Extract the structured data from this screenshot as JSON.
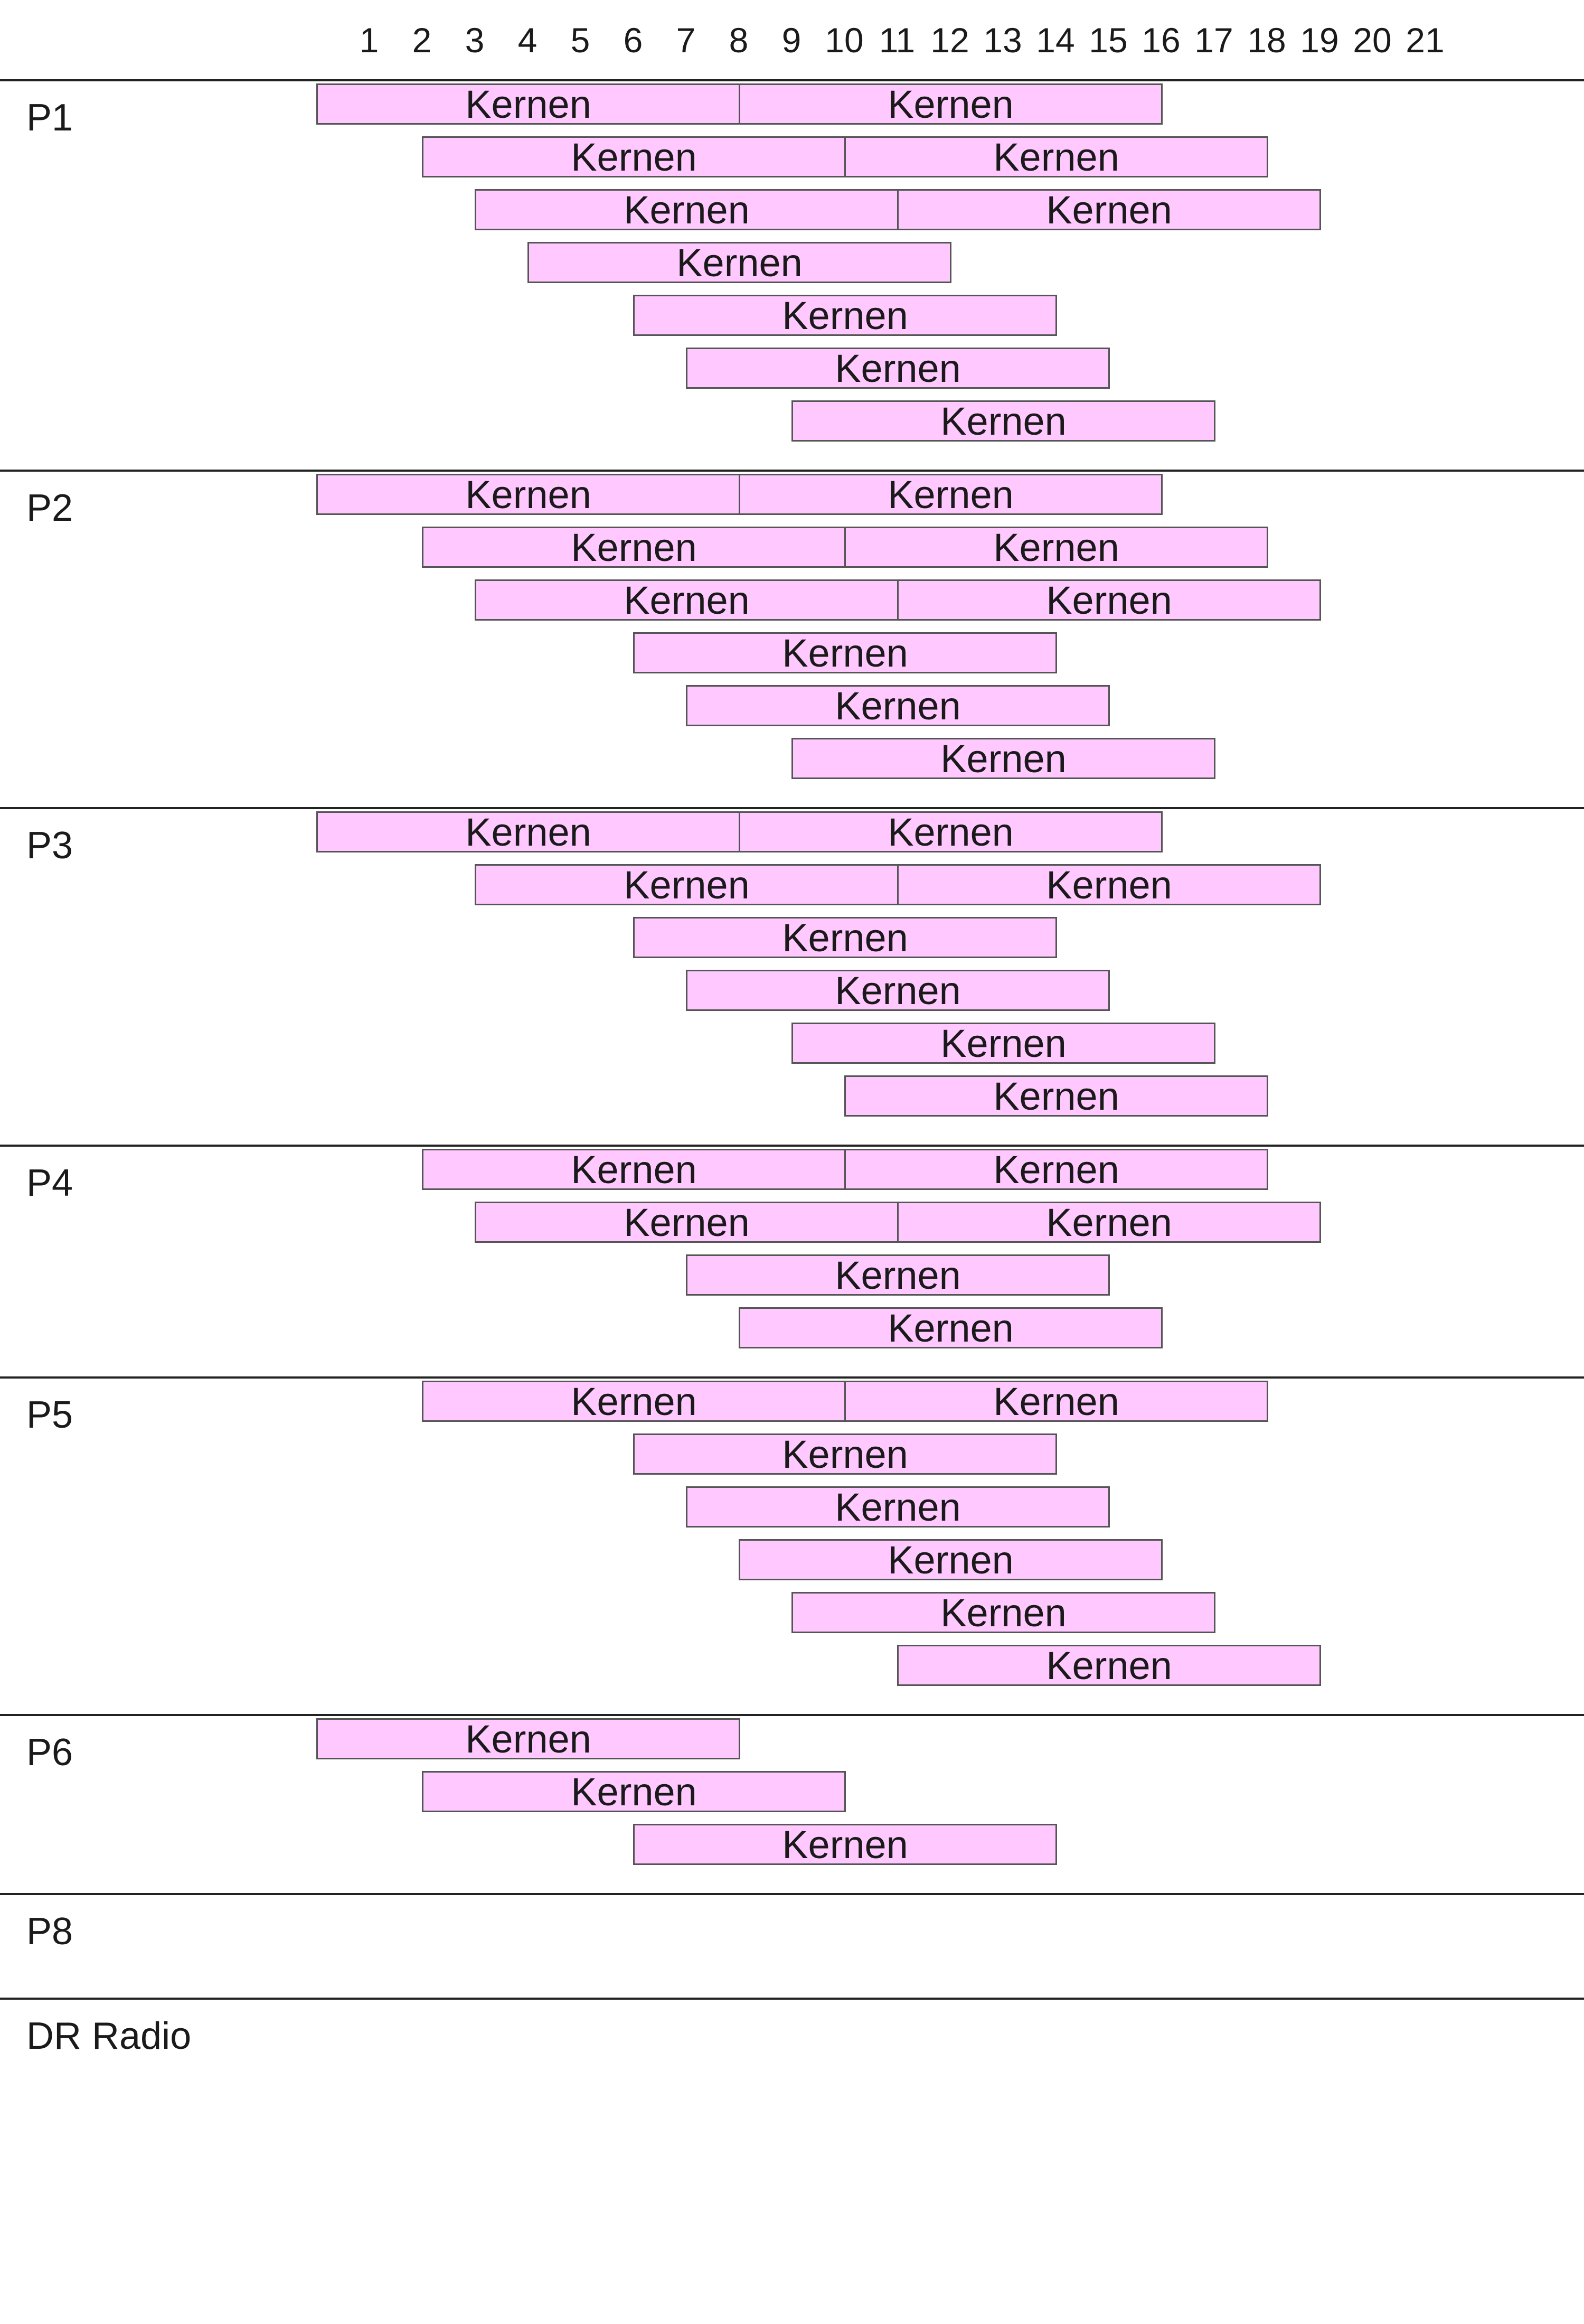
{
  "chart_data": {
    "type": "bar",
    "orientation": "horizontal-timeline",
    "x_ticks": [
      "1",
      "2",
      "3",
      "4",
      "5",
      "6",
      "7",
      "8",
      "9",
      "10",
      "11",
      "12",
      "13",
      "14",
      "15",
      "16",
      "17",
      "18",
      "19",
      "20",
      "21"
    ],
    "xlim": [
      0,
      21
    ],
    "bar_color": "#ffc8ff",
    "bar_border_color": "#555555",
    "channels": [
      {
        "name": "P1",
        "rows": [
          [
            {
              "label": "Kernen",
              "start": 0,
              "end": 8
            },
            {
              "label": "Kernen",
              "start": 8,
              "end": 16
            }
          ],
          [
            {
              "label": "Kernen",
              "start": 2,
              "end": 10
            },
            {
              "label": "Kernen",
              "start": 10,
              "end": 18
            }
          ],
          [
            {
              "label": "Kernen",
              "start": 3,
              "end": 11
            },
            {
              "label": "Kernen",
              "start": 11,
              "end": 19
            }
          ],
          [
            {
              "label": "Kernen",
              "start": 4,
              "end": 12
            }
          ],
          [
            {
              "label": "Kernen",
              "start": 6,
              "end": 14
            }
          ],
          [
            {
              "label": "Kernen",
              "start": 7,
              "end": 15
            }
          ],
          [
            {
              "label": "Kernen",
              "start": 9,
              "end": 17
            }
          ]
        ]
      },
      {
        "name": "P2",
        "rows": [
          [
            {
              "label": "Kernen",
              "start": 0,
              "end": 8
            },
            {
              "label": "Kernen",
              "start": 8,
              "end": 16
            }
          ],
          [
            {
              "label": "Kernen",
              "start": 2,
              "end": 10
            },
            {
              "label": "Kernen",
              "start": 10,
              "end": 18
            }
          ],
          [
            {
              "label": "Kernen",
              "start": 3,
              "end": 11
            },
            {
              "label": "Kernen",
              "start": 11,
              "end": 19
            }
          ],
          [
            {
              "label": "Kernen",
              "start": 6,
              "end": 14
            }
          ],
          [
            {
              "label": "Kernen",
              "start": 7,
              "end": 15
            }
          ],
          [
            {
              "label": "Kernen",
              "start": 9,
              "end": 17
            }
          ]
        ]
      },
      {
        "name": "P3",
        "rows": [
          [
            {
              "label": "Kernen",
              "start": 0,
              "end": 8
            },
            {
              "label": "Kernen",
              "start": 8,
              "end": 16
            }
          ],
          [
            {
              "label": "Kernen",
              "start": 3,
              "end": 11
            },
            {
              "label": "Kernen",
              "start": 11,
              "end": 19
            }
          ],
          [
            {
              "label": "Kernen",
              "start": 6,
              "end": 14
            }
          ],
          [
            {
              "label": "Kernen",
              "start": 7,
              "end": 15
            }
          ],
          [
            {
              "label": "Kernen",
              "start": 9,
              "end": 17
            }
          ],
          [
            {
              "label": "Kernen",
              "start": 10,
              "end": 18
            }
          ]
        ]
      },
      {
        "name": "P4",
        "rows": [
          [
            {
              "label": "Kernen",
              "start": 2,
              "end": 10
            },
            {
              "label": "Kernen",
              "start": 10,
              "end": 18
            }
          ],
          [
            {
              "label": "Kernen",
              "start": 3,
              "end": 11
            },
            {
              "label": "Kernen",
              "start": 11,
              "end": 19
            }
          ],
          [
            {
              "label": "Kernen",
              "start": 7,
              "end": 15
            }
          ],
          [
            {
              "label": "Kernen",
              "start": 8,
              "end": 16
            }
          ]
        ]
      },
      {
        "name": "P5",
        "rows": [
          [
            {
              "label": "Kernen",
              "start": 2,
              "end": 10
            },
            {
              "label": "Kernen",
              "start": 10,
              "end": 18
            }
          ],
          [
            {
              "label": "Kernen",
              "start": 6,
              "end": 14
            }
          ],
          [
            {
              "label": "Kernen",
              "start": 7,
              "end": 15
            }
          ],
          [
            {
              "label": "Kernen",
              "start": 8,
              "end": 16
            }
          ],
          [
            {
              "label": "Kernen",
              "start": 9,
              "end": 17
            }
          ],
          [
            {
              "label": "Kernen",
              "start": 11,
              "end": 19
            }
          ]
        ]
      },
      {
        "name": "P6",
        "rows": [
          [
            {
              "label": "Kernen",
              "start": 0,
              "end": 8
            }
          ],
          [
            {
              "label": "Kernen",
              "start": 2,
              "end": 10
            }
          ],
          [
            {
              "label": "Kernen",
              "start": 6,
              "end": 14
            }
          ]
        ]
      },
      {
        "name": "P8",
        "rows": []
      },
      {
        "name": "DR Radio",
        "rows": []
      }
    ]
  }
}
